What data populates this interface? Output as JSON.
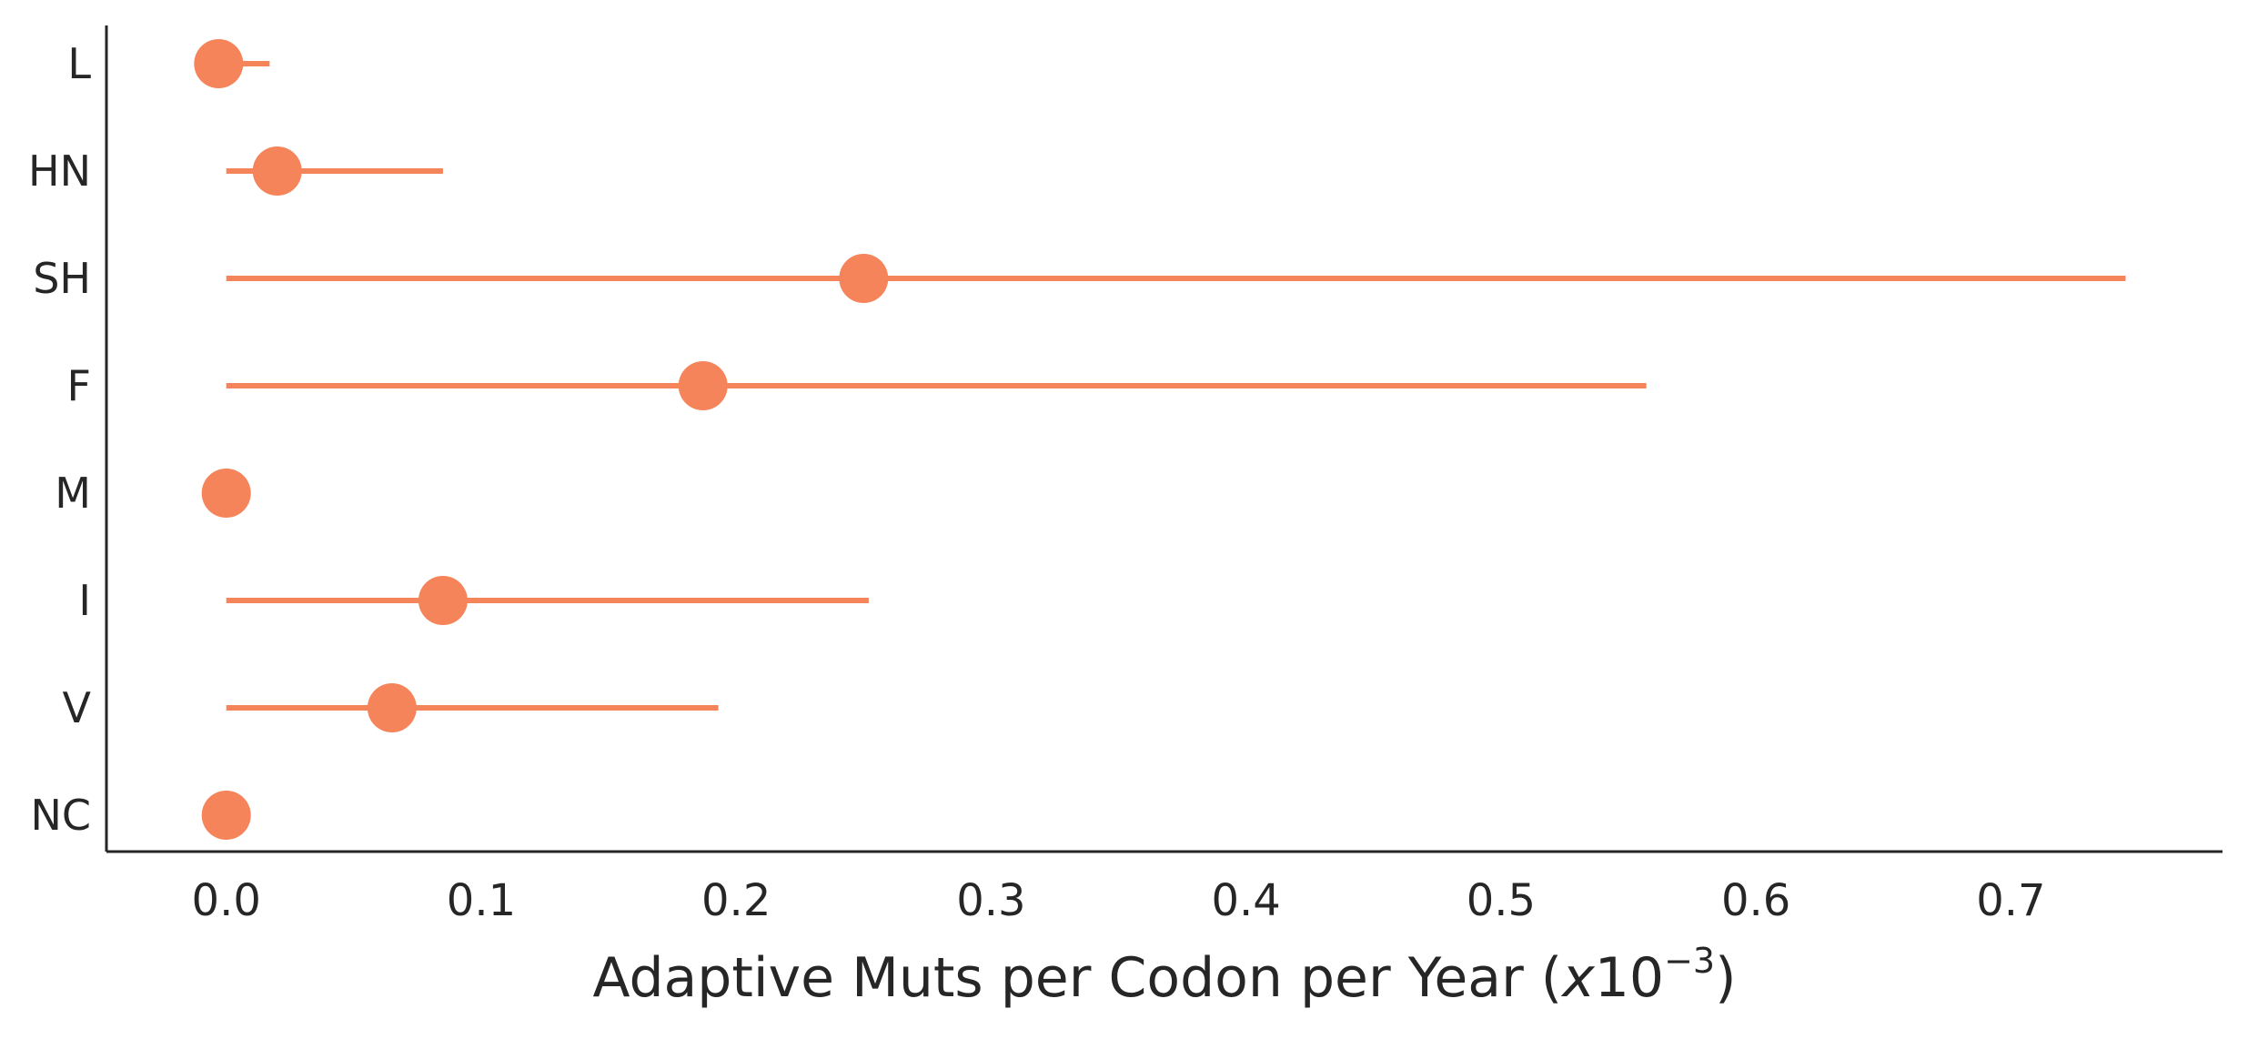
{
  "chart_data": {
    "type": "scatter",
    "orientation": "horizontal",
    "style": "point-with-error-bars",
    "categories": [
      "L",
      "HN",
      "SH",
      "F",
      "M",
      "I",
      "V",
      "NC"
    ],
    "values": [
      -0.003,
      0.02,
      0.25,
      0.187,
      0.0,
      0.085,
      0.065,
      0.0
    ],
    "ci_low": [
      -0.003,
      0.0,
      0.0,
      0.0,
      0.0,
      0.0,
      0.0,
      0.0
    ],
    "ci_high": [
      0.017,
      0.085,
      0.745,
      0.557,
      0.0,
      0.252,
      0.193,
      0.0
    ],
    "xticks": [
      "0.0",
      "0.1",
      "0.2",
      "0.3",
      "0.4",
      "0.5",
      "0.6",
      "0.7"
    ],
    "xtick_values": [
      0.0,
      0.1,
      0.2,
      0.3,
      0.4,
      0.5,
      0.6,
      0.7
    ],
    "xlabel_text": "Adaptive Muts per Codon per Year (",
    "xlabel_mult": "x",
    "xlabel_base": "10",
    "xlabel_exp": "−3",
    "xlabel_close": ")",
    "ylabel": "",
    "title": "",
    "xlim": [
      -0.047,
      0.783
    ],
    "grid": false,
    "legend": "none",
    "color": "#f5845a"
  }
}
